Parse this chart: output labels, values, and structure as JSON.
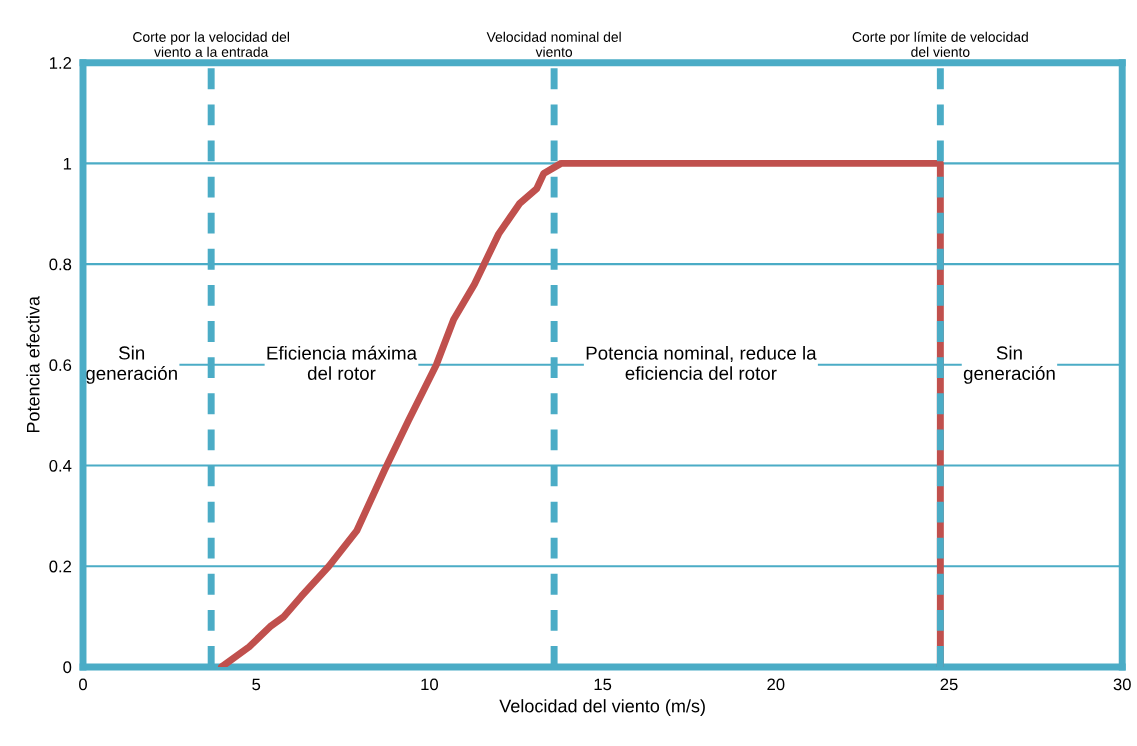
{
  "chart_data": {
    "type": "line",
    "xlabel": "Velocidad del viento (m/s)",
    "ylabel": "Potencia efectiva",
    "xlim": [
      0,
      30
    ],
    "xticks": [
      0,
      5,
      10,
      15,
      20,
      25,
      30
    ],
    "ylim": [
      0,
      1.2
    ],
    "yticks": [
      0,
      0.2,
      0.4,
      0.6,
      0.8,
      1,
      1.2
    ],
    "grid": "y",
    "series": [
      {
        "color": "#c0504d",
        "x": [
          4.0,
          4.8,
          5.4,
          5.8,
          6.3,
          7.1,
          7.9,
          8.7,
          9.4,
          10.2,
          10.7,
          11.3,
          12.0,
          12.6,
          13.1,
          13.3,
          13.8,
          24.75,
          24.75
        ],
        "values": [
          0,
          0.04,
          0.08,
          0.1,
          0.14,
          0.2,
          0.27,
          0.39,
          0.49,
          0.6,
          0.69,
          0.76,
          0.86,
          0.92,
          0.95,
          0.98,
          1,
          1,
          0
        ]
      }
    ],
    "ref_lines": [
      {
        "axis": "x",
        "value": 3.7,
        "label": "Corte por la velocidad del\nviento a la entrada",
        "color": "#4bacc6",
        "line_style": "dashed"
      },
      {
        "axis": "x",
        "value": 13.6,
        "label": "Velocidad nominal del\nviento",
        "color": "#4bacc6",
        "line_style": "dashed"
      },
      {
        "axis": "x",
        "value": 24.75,
        "label": "Corte por límite de velocidad\ndel viento",
        "color": "#4bacc6",
        "line_style": "dashed"
      }
    ],
    "annotations": [
      "Sin\ngeneración",
      "Eficiencia máxima\ndel rotor",
      "Potencia nominal, reduce la\neficiencia del rotor",
      "Sin\ngeneración"
    ],
    "legend": false
  }
}
